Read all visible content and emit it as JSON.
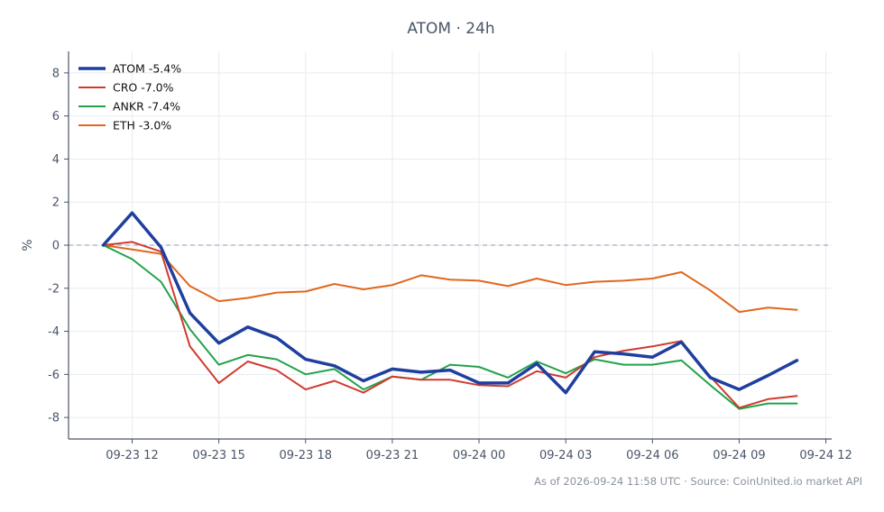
{
  "chart_data": {
    "type": "line",
    "title": "ATOM · 24h",
    "xlabel": "",
    "ylabel": "%",
    "x_ticks": [
      "09-23 12",
      "09-23 15",
      "09-23 18",
      "09-23 21",
      "09-24 00",
      "09-24 03",
      "09-24 06",
      "09-24 09",
      "09-24 12"
    ],
    "x_hours": [
      -1,
      0,
      1,
      2,
      3,
      4,
      5,
      6,
      7,
      8,
      9,
      10,
      11,
      12,
      13,
      14,
      15,
      16,
      17,
      18,
      19,
      20,
      21,
      22,
      23
    ],
    "x_range_hours": [
      -2.2,
      24.2
    ],
    "ylim": [
      -9,
      9
    ],
    "y_ticks": [
      -8,
      -6,
      -4,
      -2,
      0,
      2,
      4,
      6,
      8
    ],
    "grid": true,
    "zero_line": true,
    "legend_position": "top-left",
    "series": [
      {
        "name": "ATOM -5.4%",
        "color": "#1f3f9e",
        "width": 3.5,
        "values": [
          0,
          1.5,
          -0.1,
          -3.15,
          -4.55,
          -3.8,
          -4.3,
          -5.3,
          -5.6,
          -6.3,
          -5.75,
          -5.9,
          -5.8,
          -6.4,
          -6.4,
          -5.5,
          -6.85,
          -4.95,
          -5.05,
          -5.2,
          -4.5,
          -6.15,
          -6.7,
          -6.05,
          -5.35
        ]
      },
      {
        "name": "CRO -7.0%",
        "color": "#d03a2f",
        "width": 2,
        "values": [
          0,
          0.15,
          -0.3,
          -4.7,
          -6.4,
          -5.4,
          -5.8,
          -6.7,
          -6.3,
          -6.85,
          -6.1,
          -6.25,
          -6.25,
          -6.5,
          -6.55,
          -5.85,
          -6.15,
          -5.2,
          -4.9,
          -4.7,
          -4.45,
          -6.1,
          -7.55,
          -7.15,
          -7.0
        ]
      },
      {
        "name": "ANKR -7.4%",
        "color": "#22a24a",
        "width": 2,
        "values": [
          0,
          -0.65,
          -1.7,
          -3.9,
          -5.55,
          -5.1,
          -5.3,
          -6.0,
          -5.75,
          -6.7,
          -6.1,
          -6.25,
          -5.55,
          -5.65,
          -6.15,
          -5.4,
          -5.95,
          -5.3,
          -5.55,
          -5.55,
          -5.35,
          -6.5,
          -7.6,
          -7.35,
          -7.35
        ]
      },
      {
        "name": "ETH -3.0%",
        "color": "#e0671f",
        "width": 2,
        "values": [
          0,
          -0.2,
          -0.4,
          -1.9,
          -2.6,
          -2.45,
          -2.2,
          -2.15,
          -1.8,
          -2.05,
          -1.85,
          -1.4,
          -1.6,
          -1.65,
          -1.9,
          -1.55,
          -1.85,
          -1.7,
          -1.65,
          -1.55,
          -1.25,
          -2.1,
          -3.1,
          -2.9,
          -3.0
        ]
      }
    ]
  },
  "footer": {
    "source_note": "As of 2026-09-24 11:58 UTC · Source: CoinUnited.io market API"
  }
}
